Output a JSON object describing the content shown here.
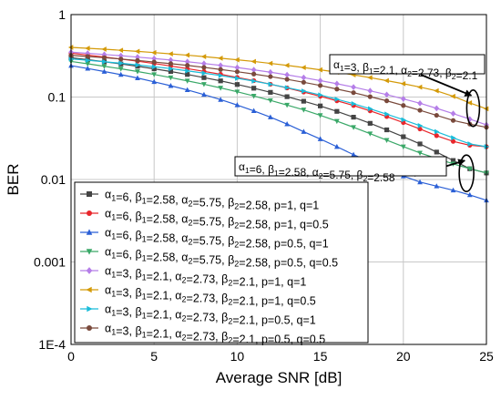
{
  "chart_data": {
    "type": "line",
    "xlabel": "Average SNR [dB]",
    "ylabel": "BER",
    "x": [
      0,
      1,
      2,
      3,
      4,
      5,
      6,
      7,
      8,
      9,
      10,
      11,
      12,
      13,
      14,
      15,
      16,
      17,
      18,
      19,
      20,
      21,
      22,
      23,
      24,
      25
    ],
    "xlim": [
      0,
      25
    ],
    "ylim": [
      0.0001,
      1
    ],
    "yscale": "log",
    "grid": true,
    "legend_position": "lower-left",
    "x_ticks": [
      "0",
      "5",
      "10",
      "15",
      "20",
      "25"
    ],
    "y_ticks": [
      {
        "value": 1,
        "label": "1"
      },
      {
        "value": 0.1,
        "label": "0.1"
      },
      {
        "value": 0.01,
        "label": "0.01"
      },
      {
        "value": 0.001,
        "label": "0.001"
      },
      {
        "value": 0.0001,
        "label": "1E-4"
      }
    ],
    "series": [
      {
        "name": "α1=6, β1=2.58, α2=5.75, β2=2.58, p=1, q=1",
        "color": "#444444",
        "marker": "square",
        "values": [
          0.3,
          0.284,
          0.268,
          0.252,
          0.236,
          0.22,
          0.204,
          0.188,
          0.172,
          0.157,
          0.142,
          0.128,
          0.114,
          0.101,
          0.089,
          0.078,
          0.067,
          0.057,
          0.048,
          0.04,
          0.033,
          0.027,
          0.0215,
          0.017,
          0.0135,
          0.012
        ]
      },
      {
        "name": "α1=6, β1=2.58, α2=5.75, β2=2.58, p=1, q=0.5",
        "color": "#e8262b",
        "marker": "circle",
        "values": [
          0.34,
          0.323,
          0.306,
          0.289,
          0.272,
          0.255,
          0.238,
          0.221,
          0.205,
          0.189,
          0.173,
          0.158,
          0.143,
          0.129,
          0.115,
          0.102,
          0.09,
          0.079,
          0.068,
          0.058,
          0.049,
          0.041,
          0.034,
          0.029,
          0.026,
          0.025
        ]
      },
      {
        "name": "α1=6, β1=2.58, α2=5.75, β2=2.58, p=0.5, q=1",
        "color": "#2a5fd6",
        "marker": "triangle-up",
        "values": [
          0.24,
          0.222,
          0.204,
          0.187,
          0.17,
          0.153,
          0.137,
          0.122,
          0.107,
          0.093,
          0.08,
          0.068,
          0.057,
          0.047,
          0.038,
          0.031,
          0.025,
          0.02,
          0.0165,
          0.0135,
          0.011,
          0.0093,
          0.0083,
          0.0074,
          0.0065,
          0.0056
        ]
      },
      {
        "name": "α1=6, β1=2.58, α2=5.75, β2=2.58, p=0.5, q=0.5",
        "color": "#3aa868",
        "marker": "triangle-down",
        "values": [
          0.27,
          0.253,
          0.236,
          0.22,
          0.204,
          0.188,
          0.172,
          0.157,
          0.143,
          0.129,
          0.116,
          0.103,
          0.091,
          0.08,
          0.07,
          0.06,
          0.051,
          0.043,
          0.036,
          0.03,
          0.025,
          0.021,
          0.018,
          0.0155,
          0.0135,
          0.012
        ]
      },
      {
        "name": "α1=3, β1=2.1, α2=2.73, β2=2.1, p=1, q=1",
        "color": "#b57ee8",
        "marker": "diamond",
        "values": [
          0.35,
          0.339,
          0.328,
          0.317,
          0.305,
          0.293,
          0.281,
          0.268,
          0.255,
          0.242,
          0.228,
          0.214,
          0.2,
          0.186,
          0.172,
          0.158,
          0.145,
          0.132,
          0.119,
          0.107,
          0.095,
          0.084,
          0.073,
          0.063,
          0.054,
          0.046
        ]
      },
      {
        "name": "α1=3, β1=2.1, α2=2.73, β2=2.1, p=1, q=0.5",
        "color": "#d49a08",
        "marker": "triangle-left",
        "values": [
          0.4,
          0.39,
          0.38,
          0.369,
          0.358,
          0.346,
          0.334,
          0.322,
          0.309,
          0.296,
          0.283,
          0.27,
          0.256,
          0.242,
          0.228,
          0.214,
          0.2,
          0.186,
          0.172,
          0.158,
          0.145,
          0.132,
          0.119,
          0.102,
          0.085,
          0.072
        ]
      },
      {
        "name": "α1=3, β1=2.1, α2=2.73, β2=2.1, p=0.5, q=1",
        "color": "#19bcd9",
        "marker": "triangle-right",
        "values": [
          0.29,
          0.279,
          0.268,
          0.257,
          0.245,
          0.233,
          0.221,
          0.208,
          0.195,
          0.182,
          0.169,
          0.156,
          0.143,
          0.13,
          0.118,
          0.106,
          0.094,
          0.083,
          0.072,
          0.062,
          0.053,
          0.045,
          0.038,
          0.032,
          0.027,
          0.025
        ]
      },
      {
        "name": "α1=3, β1=2.1, α2=2.73, β2=2.1, p=0.5, q=0.5",
        "color": "#7a4a3c",
        "marker": "circle",
        "values": [
          0.32,
          0.31,
          0.3,
          0.289,
          0.278,
          0.266,
          0.254,
          0.242,
          0.229,
          0.216,
          0.203,
          0.19,
          0.177,
          0.164,
          0.151,
          0.138,
          0.125,
          0.113,
          0.101,
          0.09,
          0.079,
          0.069,
          0.06,
          0.052,
          0.047,
          0.043
        ]
      }
    ],
    "annotations": [
      {
        "text": "α1=3, β1=2.1, α2=2.73, β2=2.1",
        "x": 24.2,
        "y": 0.075
      },
      {
        "text": "α1=6, β1=2.58, α2=5.75, β2=2.58",
        "x": 23.8,
        "y": 0.0125
      }
    ]
  }
}
